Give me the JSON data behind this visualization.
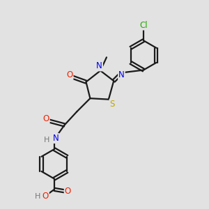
{
  "bg_color": "#e2e2e2",
  "bond_color": "#1a1a1a",
  "bond_width": 1.6,
  "atom_colors": {
    "C": "#1a1a1a",
    "N": "#0000ee",
    "O": "#ee2200",
    "S": "#bbaa00",
    "Cl": "#22aa00",
    "H": "#777777"
  },
  "font_size": 8.5,
  "fig_size": [
    3.0,
    3.0
  ],
  "dpi": 100
}
